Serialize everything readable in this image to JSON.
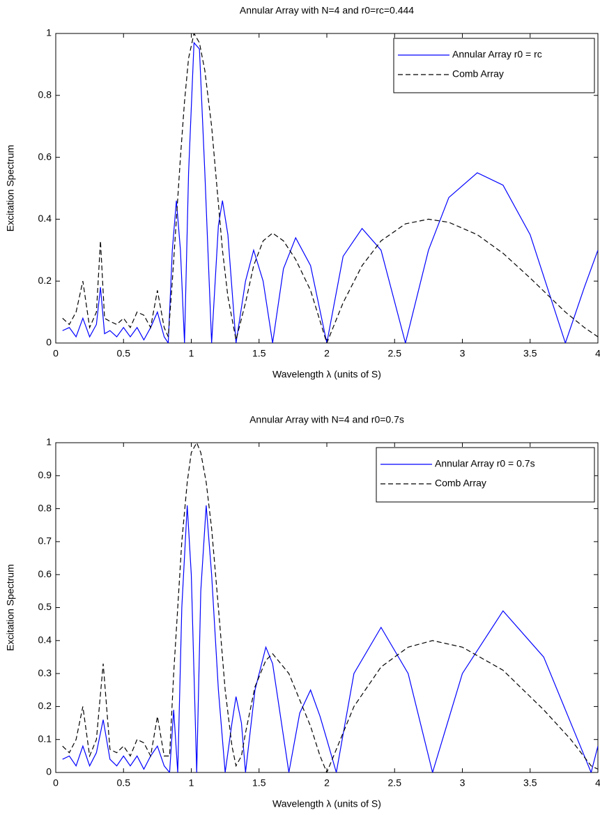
{
  "chart_data": [
    {
      "type": "line",
      "title": "Annular Array with N=4 and r0=rc=0.444",
      "xlabel": "Wavelength λ (units of S)",
      "ylabel": "Excitation Spectrum",
      "x": [
        0.05,
        0.1,
        0.15,
        0.2,
        0.25,
        0.3,
        0.33,
        0.36,
        0.4,
        0.45,
        0.5,
        0.55,
        0.6,
        0.65,
        0.7,
        0.75,
        0.8,
        0.83,
        0.86,
        0.89,
        0.92,
        0.95,
        0.98,
        1.02,
        1.06,
        1.1,
        1.15,
        1.2,
        1.23,
        1.27,
        1.33,
        1.4,
        1.46,
        1.53,
        1.6,
        1.68,
        1.77,
        1.88,
        2.0,
        2.12,
        2.26,
        2.4,
        2.58,
        2.75,
        2.9,
        3.11,
        3.3,
        3.5,
        3.76,
        3.9,
        4.0
      ],
      "series": [
        {
          "name": "Annular Array r0 = rc",
          "color": "#0000ff",
          "dashed": false,
          "values": [
            0.04,
            0.05,
            0.02,
            0.08,
            0.02,
            0.06,
            0.18,
            0.03,
            0.04,
            0.02,
            0.05,
            0.02,
            0.05,
            0.01,
            0.05,
            0.1,
            0.02,
            0.0,
            0.3,
            0.46,
            0.3,
            0.0,
            0.55,
            0.97,
            0.95,
            0.55,
            0.0,
            0.38,
            0.46,
            0.35,
            0.0,
            0.2,
            0.3,
            0.2,
            0.0,
            0.24,
            0.34,
            0.25,
            0.0,
            0.28,
            0.37,
            0.3,
            0.0,
            0.3,
            0.47,
            0.55,
            0.51,
            0.35,
            0.0,
            0.18,
            0.3
          ]
        },
        {
          "name": "Comb Array",
          "color": "#000000",
          "dashed": true,
          "values": [
            0.08,
            0.06,
            0.1,
            0.2,
            0.05,
            0.1,
            0.33,
            0.08,
            0.07,
            0.06,
            0.08,
            0.05,
            0.1,
            0.09,
            0.05,
            0.17,
            0.05,
            0.02,
            0.2,
            0.4,
            0.6,
            0.78,
            0.92,
            1.0,
            0.97,
            0.88,
            0.7,
            0.45,
            0.3,
            0.15,
            0.01,
            0.13,
            0.25,
            0.33,
            0.355,
            0.33,
            0.27,
            0.17,
            0.0,
            0.13,
            0.25,
            0.33,
            0.385,
            0.4,
            0.39,
            0.35,
            0.29,
            0.21,
            0.1,
            0.05,
            0.02
          ]
        }
      ],
      "xlim": [
        0,
        4
      ],
      "xticks": [
        0,
        0.5,
        1,
        1.5,
        2,
        2.5,
        3,
        3.5,
        4
      ],
      "ylim": [
        0,
        1
      ],
      "yticks": [
        0,
        0.2,
        0.4,
        0.6,
        0.8,
        1
      ],
      "grid": false,
      "legend": "upper right"
    },
    {
      "type": "line",
      "title": "Annular Array with N=4 and r0=0.7s",
      "xlabel": "Wavelength λ (units of S)",
      "ylabel": "Excitation Spectrum",
      "x": [
        0.05,
        0.1,
        0.15,
        0.2,
        0.25,
        0.3,
        0.35,
        0.4,
        0.45,
        0.5,
        0.55,
        0.6,
        0.65,
        0.7,
        0.75,
        0.8,
        0.84,
        0.87,
        0.9,
        0.93,
        0.97,
        1.0,
        1.04,
        1.07,
        1.11,
        1.15,
        1.2,
        1.25,
        1.3,
        1.33,
        1.37,
        1.4,
        1.47,
        1.55,
        1.6,
        1.72,
        1.8,
        1.88,
        1.95,
        2.0,
        2.07,
        2.2,
        2.4,
        2.6,
        2.78,
        3.0,
        3.3,
        3.6,
        3.8,
        3.95,
        4.0
      ],
      "series": [
        {
          "name": "Annular Array r0 = 0.7s",
          "color": "#0000ff",
          "dashed": false,
          "values": [
            0.04,
            0.05,
            0.02,
            0.08,
            0.02,
            0.06,
            0.16,
            0.04,
            0.02,
            0.05,
            0.02,
            0.05,
            0.01,
            0.05,
            0.08,
            0.02,
            0.0,
            0.19,
            0.0,
            0.5,
            0.81,
            0.6,
            0.0,
            0.55,
            0.81,
            0.6,
            0.25,
            0.0,
            0.15,
            0.23,
            0.15,
            0.0,
            0.25,
            0.38,
            0.33,
            0.0,
            0.18,
            0.25,
            0.17,
            0.1,
            0.0,
            0.3,
            0.44,
            0.3,
            0.0,
            0.3,
            0.49,
            0.35,
            0.15,
            0.0,
            0.08
          ]
        },
        {
          "name": "Comb Array",
          "color": "#000000",
          "dashed": true,
          "values": [
            0.08,
            0.06,
            0.1,
            0.2,
            0.05,
            0.1,
            0.33,
            0.07,
            0.06,
            0.08,
            0.05,
            0.1,
            0.09,
            0.05,
            0.17,
            0.05,
            0.05,
            0.3,
            0.5,
            0.7,
            0.88,
            0.97,
            1.0,
            0.97,
            0.88,
            0.74,
            0.5,
            0.25,
            0.08,
            0.02,
            0.05,
            0.12,
            0.26,
            0.34,
            0.36,
            0.3,
            0.22,
            0.14,
            0.05,
            0.0,
            0.07,
            0.2,
            0.32,
            0.38,
            0.4,
            0.38,
            0.31,
            0.19,
            0.1,
            0.02,
            0.01
          ]
        }
      ],
      "xlim": [
        0,
        4
      ],
      "xticks": [
        0,
        0.5,
        1,
        1.5,
        2,
        2.5,
        3,
        3.5,
        4
      ],
      "ylim": [
        0,
        1
      ],
      "yticks": [
        0,
        0.1,
        0.2,
        0.3,
        0.4,
        0.5,
        0.6,
        0.7,
        0.8,
        0.9,
        1
      ],
      "grid": false,
      "legend": "upper right"
    }
  ]
}
